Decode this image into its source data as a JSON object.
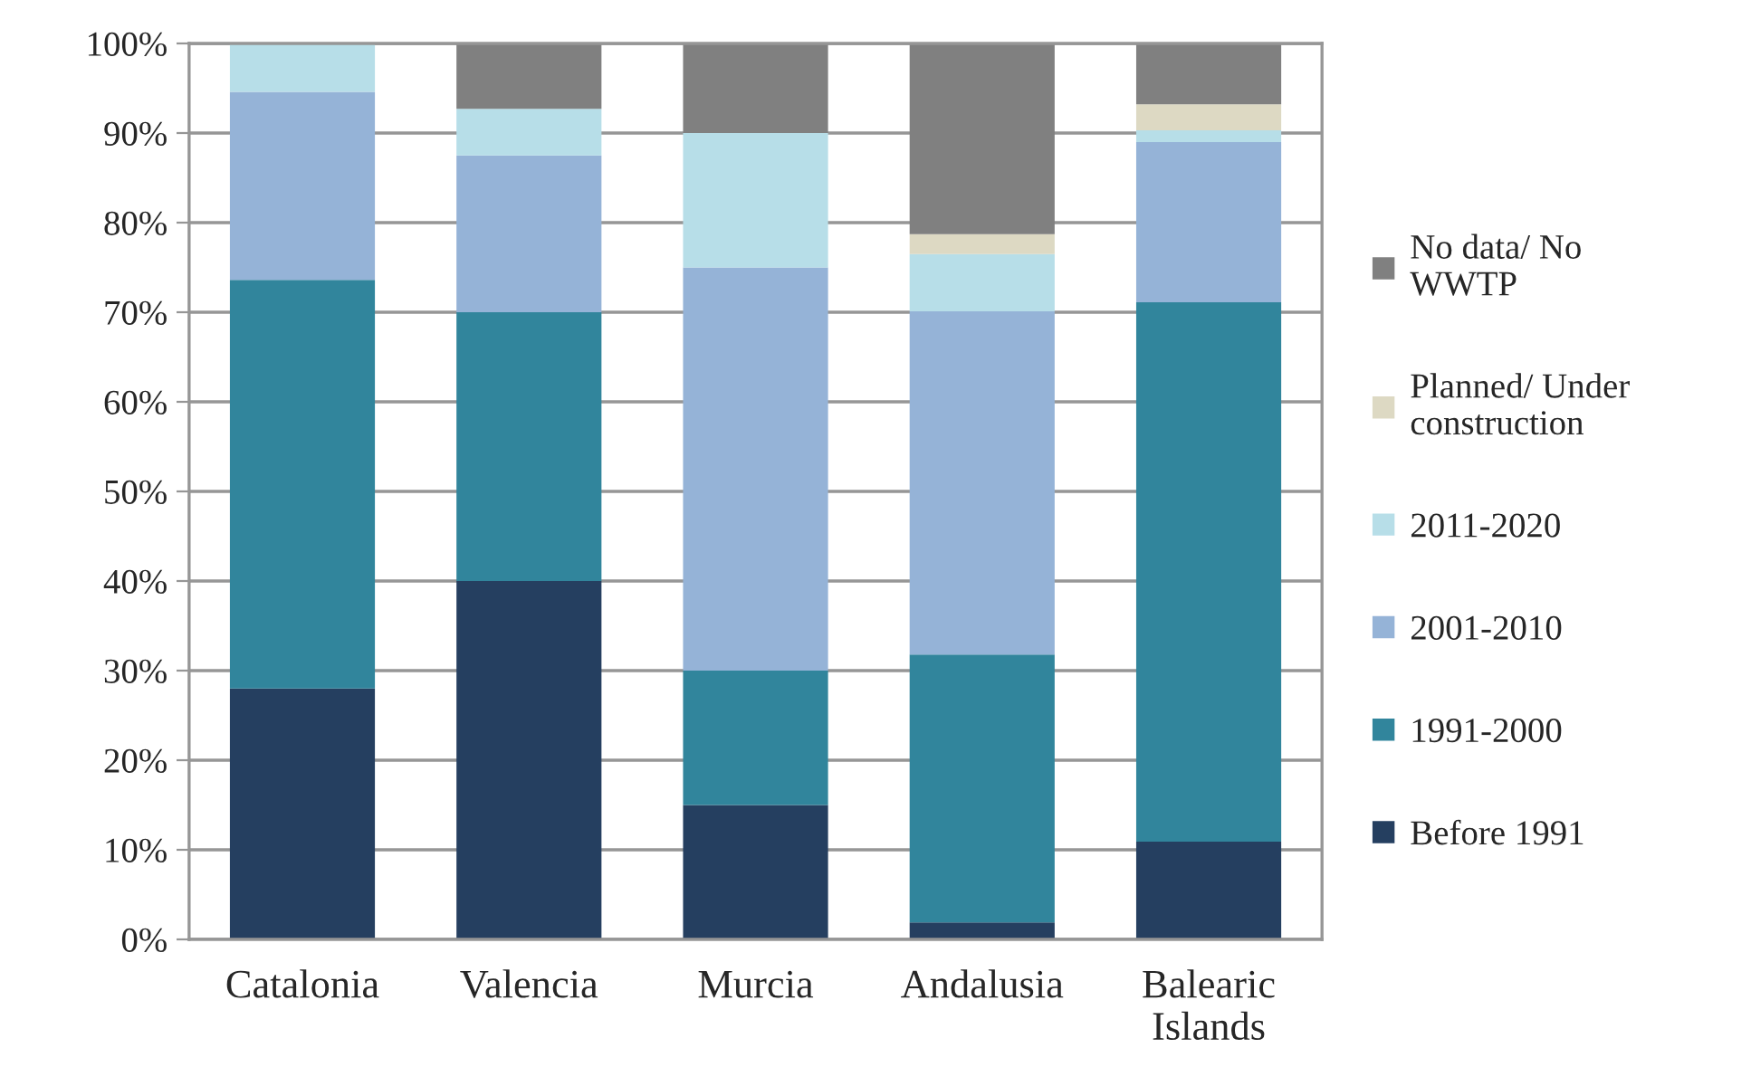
{
  "chart_data": {
    "type": "bar",
    "stacked": true,
    "categories": [
      "Catalonia",
      "Valencia",
      "Murcia",
      "Andalusia",
      "Balearic\nIslands"
    ],
    "series": [
      {
        "name": "Before 1991",
        "color": "#253f60",
        "values": [
          28,
          40,
          15,
          1.9,
          10.9
        ]
      },
      {
        "name": "1991-2000",
        "color": "#31859c",
        "values": [
          45.6,
          30,
          15,
          29.9,
          60.2
        ]
      },
      {
        "name": "2001-2010",
        "color": "#95b3d7",
        "values": [
          21,
          17.5,
          45,
          38.3,
          17.9
        ]
      },
      {
        "name": "2011-2020",
        "color": "#b7dee8",
        "values": [
          5.4,
          5.2,
          15,
          6.4,
          1.3
        ]
      },
      {
        "name": "Planned/ Under\nconstruction",
        "color": "#ddd9c3",
        "values": [
          0,
          0,
          0,
          2.2,
          2.9
        ]
      },
      {
        "name": "No data/ No\nWWTP",
        "color": "#808080",
        "values": [
          0,
          7.3,
          10,
          21.3,
          6.8
        ]
      }
    ],
    "ylim": [
      0,
      100
    ],
    "yticks": [
      {
        "value": 0,
        "label": "0%"
      },
      {
        "value": 10,
        "label": "10%"
      },
      {
        "value": 20,
        "label": "20%"
      },
      {
        "value": 30,
        "label": "30%"
      },
      {
        "value": 40,
        "label": "40%"
      },
      {
        "value": 50,
        "label": "50%"
      },
      {
        "value": 60,
        "label": "60%"
      },
      {
        "value": 70,
        "label": "70%"
      },
      {
        "value": 80,
        "label": "80%"
      },
      {
        "value": 90,
        "label": "90%"
      },
      {
        "value": 100,
        "label": "100%"
      }
    ],
    "grid": "y",
    "legend": "right"
  }
}
